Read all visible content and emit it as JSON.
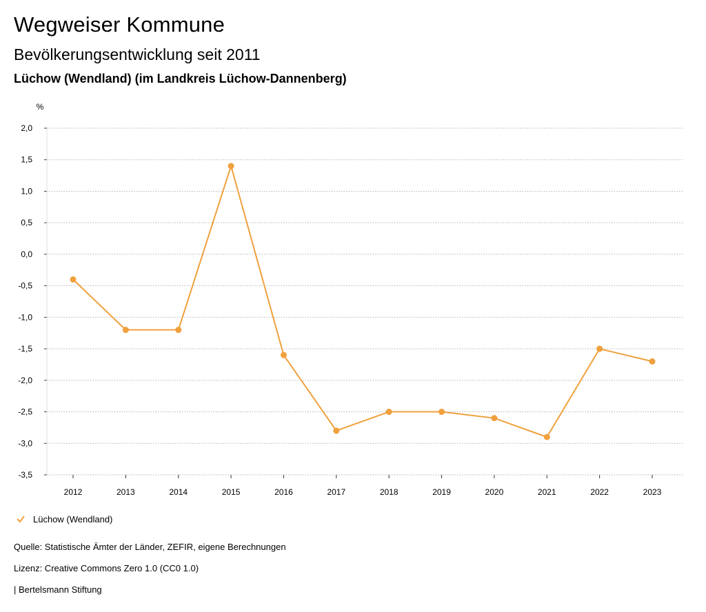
{
  "header": {
    "title": "Wegweiser Kommune",
    "subtitle": "Bevölkerungsentwicklung seit 2011",
    "place": "Lüchow (Wendland) (im Landkreis Lüchow-Dannenberg)"
  },
  "colors": {
    "series": "#f0a03c",
    "grid": "#b3b3b3",
    "axis": "#333333"
  },
  "chart_data": {
    "type": "line",
    "title": "Bevölkerungsentwicklung seit 2011",
    "ylabel": "%",
    "xlabel": "",
    "ylim": [
      -3.5,
      2.0
    ],
    "yticks": [
      2.0,
      1.5,
      1.0,
      0.5,
      0.0,
      -0.5,
      -1.0,
      -1.5,
      -2.0,
      -2.5,
      -3.0,
      -3.5
    ],
    "ytick_labels": [
      "2,0",
      "1,5",
      "1,0",
      "0,5",
      "0,0",
      "-0,5",
      "-1,0",
      "-1,5",
      "-2,0",
      "-2,5",
      "-3,0",
      "-3,5"
    ],
    "categories": [
      "2012",
      "2013",
      "2014",
      "2015",
      "2016",
      "2017",
      "2018",
      "2019",
      "2020",
      "2021",
      "2022",
      "2023"
    ],
    "series": [
      {
        "name": "Lüchow (Wendland)",
        "values": [
          -0.4,
          -1.2,
          -1.2,
          1.4,
          -1.6,
          -2.8,
          -2.5,
          -2.5,
          -2.6,
          -2.9,
          -1.5,
          -1.7
        ]
      }
    ],
    "grid": true,
    "legend": "bottom-left"
  },
  "legend": {
    "label": "Lüchow (Wendland)",
    "icon": "check-icon"
  },
  "footer": {
    "source": "Quelle: Statistische Ämter der Länder, ZEFIR, eigene Berechnungen",
    "license": "Lizenz: Creative Commons Zero 1.0 (CC0 1.0)",
    "org": "| Bertelsmann Stiftung"
  }
}
